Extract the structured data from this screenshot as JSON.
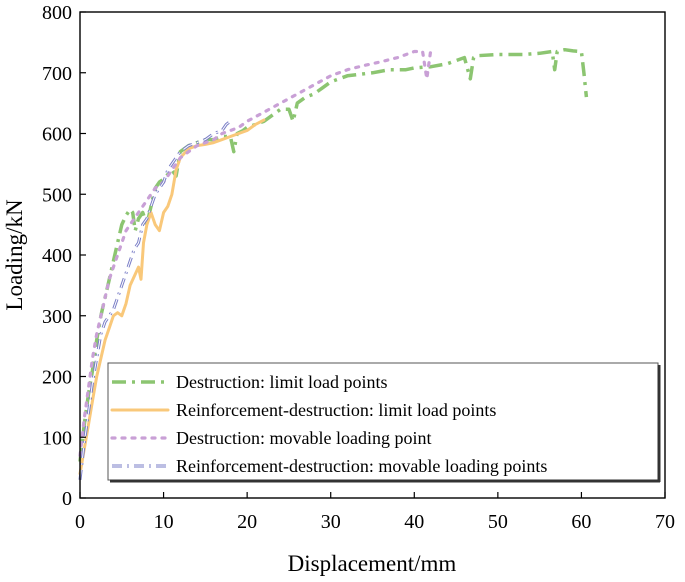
{
  "chart_data": {
    "type": "line",
    "title": "",
    "xlabel": "Displacement/mm",
    "ylabel": "Loading/kN",
    "xlim": [
      0,
      70
    ],
    "ylim": [
      0,
      800
    ],
    "xticks": [
      0,
      10,
      20,
      30,
      40,
      50,
      60,
      70
    ],
    "yticks": [
      0,
      100,
      200,
      300,
      400,
      500,
      600,
      700,
      800
    ],
    "grid": false,
    "legend_position": "bottom-right",
    "series": [
      {
        "name": "Destruction: limit load points",
        "color": "#8cc571",
        "style": "dash-dot",
        "x": [
          0,
          0.5,
          1,
          1.5,
          2,
          2.5,
          3,
          3.5,
          4,
          4.5,
          5,
          5.5,
          6,
          6.3,
          6.6,
          7,
          7.5,
          8,
          8.5,
          9,
          9.5,
          10,
          11,
          11.5,
          12,
          13,
          14,
          15,
          16,
          17,
          18,
          18.4,
          18.8,
          19.5,
          20,
          21,
          22,
          23,
          24,
          25,
          25.5,
          26,
          27,
          28,
          29,
          30,
          32,
          35,
          37,
          39,
          40,
          42,
          44,
          46,
          46.7,
          47.1,
          47.5,
          50,
          53,
          55,
          56.5,
          56.8,
          57.1,
          58,
          59,
          60,
          60.3,
          60.6
        ],
        "y": [
          60,
          120,
          170,
          210,
          260,
          300,
          330,
          360,
          390,
          420,
          450,
          465,
          475,
          470,
          440,
          460,
          470,
          450,
          480,
          510,
          520,
          525,
          540,
          530,
          570,
          580,
          585,
          590,
          590,
          595,
          595,
          570,
          600,
          605,
          610,
          615,
          620,
          630,
          640,
          640,
          620,
          650,
          660,
          665,
          675,
          685,
          695,
          700,
          705,
          705,
          708,
          710,
          715,
          725,
          690,
          725,
          728,
          730,
          730,
          732,
          735,
          705,
          735,
          738,
          736,
          735,
          700,
          660
        ]
      },
      {
        "name": "Reinforcement-destruction: limit load points",
        "color": "#f9c87a",
        "style": "solid",
        "x": [
          0,
          0.5,
          1,
          1.5,
          2,
          2.5,
          3,
          3.5,
          4,
          4.5,
          5,
          5.5,
          6,
          6.5,
          7,
          7.3,
          7.6,
          8,
          8.5,
          9,
          9.5,
          10,
          10.5,
          11,
          11.5,
          12,
          13,
          14,
          15,
          16,
          17,
          18,
          19,
          20,
          21,
          22
        ],
        "y": [
          40,
          80,
          120,
          160,
          200,
          230,
          260,
          280,
          300,
          305,
          300,
          320,
          350,
          365,
          380,
          360,
          420,
          450,
          470,
          450,
          440,
          470,
          480,
          500,
          540,
          560,
          575,
          580,
          582,
          585,
          590,
          595,
          600,
          605,
          615,
          622
        ]
      },
      {
        "name": "Destruction: movable loading point",
        "color": "#c9a0d6",
        "style": "dotted",
        "x": [
          0,
          0.5,
          1,
          1.5,
          2,
          2.5,
          3,
          3.5,
          4,
          4.5,
          5,
          5.5,
          6,
          6.5,
          7,
          7.5,
          8,
          8.5,
          9,
          9.5,
          10,
          11,
          12,
          13,
          14,
          15,
          16,
          17,
          18,
          19,
          20,
          22,
          24,
          26,
          28,
          30,
          32,
          34,
          36,
          38,
          40,
          41,
          41.5,
          42
        ],
        "y": [
          70,
          130,
          180,
          230,
          270,
          300,
          330,
          360,
          380,
          400,
          420,
          440,
          450,
          460,
          470,
          480,
          490,
          500,
          510,
          515,
          520,
          540,
          560,
          570,
          580,
          585,
          590,
          600,
          605,
          610,
          620,
          635,
          650,
          665,
          680,
          695,
          705,
          712,
          718,
          725,
          735,
          735,
          690,
          740
        ]
      },
      {
        "name": "Reinforcement-destruction: movable loading points",
        "color": "#7a7ec7",
        "style": "dash-dot-outline",
        "x": [
          0,
          0.5,
          1,
          1.5,
          2,
          2.5,
          3,
          3.5,
          4,
          4.5,
          5,
          5.5,
          6,
          6.5,
          7,
          7.5,
          8,
          8.5,
          9,
          9.5,
          10,
          10.5,
          11,
          11.5,
          12,
          12.5,
          13,
          14,
          15,
          16,
          17,
          17.5,
          18
        ],
        "y": [
          30,
          90,
          140,
          190,
          230,
          270,
          290,
          300,
          310,
          330,
          350,
          370,
          390,
          410,
          420,
          450,
          460,
          480,
          500,
          510,
          520,
          540,
          550,
          560,
          570,
          575,
          580,
          585,
          590,
          600,
          605,
          615,
          620
        ]
      }
    ]
  }
}
